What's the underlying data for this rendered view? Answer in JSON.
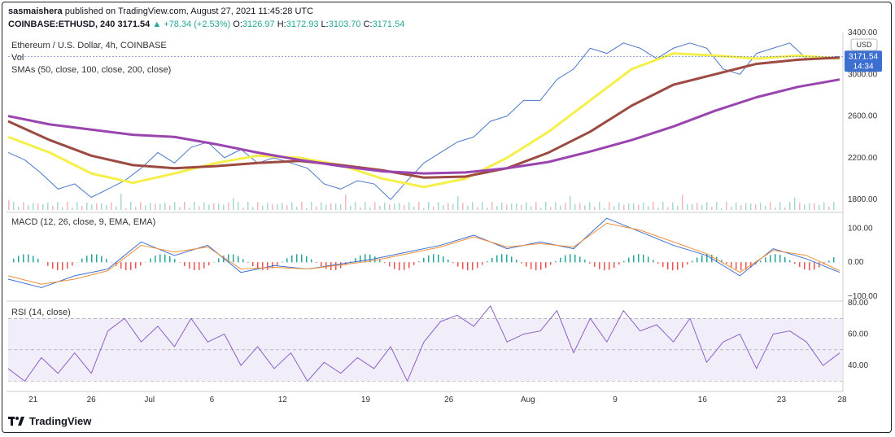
{
  "header": {
    "publisher": "sasmaishera",
    "published_text": "published on TradingView.com, August 27, 2021 11:45:28 UTC",
    "symbol": "COINBASE:ETHUSD, 240",
    "last": "3171.54",
    "change": "▲ +78.34 (+2.53%)",
    "o_label": "O:",
    "o_value": "3126.97",
    "h_label": "H:",
    "h_value": "3172.93",
    "l_label": "L:",
    "l_value": "3103.70",
    "c_label": "C:",
    "c_value": "3171.54"
  },
  "legends": {
    "main": "Ethereum / U.S. Dollar, 4h, COINBASE",
    "vol": "Vol",
    "sma": "SMAs (50, close, 100, close, 200, close)",
    "macd": "MACD (12, 26, close, 9, EMA, EMA)",
    "rsi": "RSI (14, close)"
  },
  "price_tag": {
    "value": "3171.54",
    "countdown": "14:34",
    "currency": "USD"
  },
  "footer": {
    "brand": "TradingView"
  },
  "colors": {
    "price": "#4a78c9",
    "sma50": "#f5ef4a",
    "sma100": "#9c4a42",
    "sma200": "#9a44b0",
    "macd": "#3d6fd1",
    "signal": "#f0913a",
    "rsi": "#8b5fc9"
  },
  "chart_data": [
    {
      "type": "line",
      "title": "Ethereum / U.S. Dollar, 4h, COINBASE",
      "x_ticks": [
        "21",
        "26",
        "Jul",
        "6",
        "12",
        "19",
        "26",
        "Aug",
        "9",
        "16",
        "23",
        "28"
      ],
      "y_ticks": [
        "3400.00",
        "3000.00",
        "2600.00",
        "2200.00",
        "1800.00"
      ],
      "ylim": [
        1700,
        3400
      ],
      "series": [
        {
          "name": "Ethereum / U.S. Dollar",
          "color": "#4a78c9",
          "x": [
            0,
            2,
            4,
            6,
            8,
            10,
            12,
            14,
            16,
            18,
            20,
            22,
            24,
            26,
            28,
            30,
            32,
            34,
            36,
            38,
            40,
            42,
            44,
            46,
            48,
            50,
            52,
            54,
            56,
            58,
            60,
            62,
            64,
            66,
            68,
            70,
            72,
            74,
            76,
            78,
            80,
            82,
            84,
            86,
            88,
            90,
            92,
            94,
            96,
            98,
            100
          ],
          "values": [
            2250,
            2180,
            2050,
            1900,
            1950,
            1820,
            1900,
            1980,
            2100,
            2250,
            2150,
            2300,
            2350,
            2200,
            2280,
            2150,
            2200,
            2150,
            2100,
            1950,
            1900,
            1980,
            1950,
            1800,
            1980,
            2150,
            2250,
            2350,
            2400,
            2550,
            2600,
            2750,
            2750,
            2950,
            3050,
            3250,
            3200,
            3300,
            3250,
            3150,
            3250,
            3300,
            3250,
            3050,
            3000,
            3200,
            3250,
            3300,
            3150,
            3150,
            3171.54
          ]
        },
        {
          "name": "SMA 50",
          "color": "#f5ef4a",
          "x": [
            0,
            5,
            10,
            15,
            20,
            25,
            30,
            35,
            40,
            45,
            50,
            55,
            60,
            65,
            70,
            75,
            80,
            85,
            90,
            95,
            100
          ],
          "values": [
            2400,
            2250,
            2050,
            1960,
            2050,
            2150,
            2220,
            2200,
            2130,
            2000,
            1920,
            2000,
            2200,
            2450,
            2750,
            3050,
            3200,
            3180,
            3150,
            3180,
            3150
          ]
        },
        {
          "name": "SMA 100",
          "color": "#9c4a42",
          "x": [
            0,
            5,
            10,
            15,
            20,
            25,
            30,
            35,
            40,
            45,
            50,
            55,
            60,
            65,
            70,
            75,
            80,
            85,
            90,
            95,
            100
          ],
          "values": [
            2550,
            2370,
            2220,
            2130,
            2100,
            2120,
            2150,
            2170,
            2130,
            2080,
            2010,
            2020,
            2100,
            2250,
            2450,
            2700,
            2900,
            3000,
            3100,
            3140,
            3160
          ]
        },
        {
          "name": "SMA 200",
          "color": "#9a44b0",
          "x": [
            0,
            5,
            10,
            15,
            20,
            25,
            30,
            35,
            40,
            45,
            50,
            55,
            60,
            65,
            70,
            75,
            80,
            85,
            90,
            95,
            100
          ],
          "values": [
            2600,
            2520,
            2470,
            2420,
            2400,
            2330,
            2250,
            2180,
            2120,
            2070,
            2050,
            2060,
            2100,
            2160,
            2260,
            2370,
            2500,
            2650,
            2780,
            2880,
            2950
          ]
        }
      ]
    },
    {
      "type": "line",
      "title": "MACD (12, 26, close, 9, EMA, EMA)",
      "y_ticks": [
        "100.00",
        "0.00",
        "−100.00"
      ],
      "ylim": [
        -110,
        140
      ],
      "series": [
        {
          "name": "MACD",
          "color": "#3d6fd1",
          "x": [
            0,
            4,
            8,
            12,
            16,
            20,
            24,
            28,
            32,
            36,
            40,
            44,
            48,
            52,
            56,
            60,
            64,
            68,
            72,
            76,
            80,
            84,
            88,
            92,
            96,
            100
          ],
          "values": [
            -50,
            -75,
            -40,
            -20,
            60,
            20,
            50,
            -30,
            -10,
            -20,
            -5,
            10,
            30,
            50,
            80,
            40,
            60,
            40,
            130,
            90,
            50,
            20,
            -40,
            40,
            10,
            -30
          ]
        },
        {
          "name": "Signal",
          "color": "#f0913a",
          "x": [
            0,
            4,
            8,
            12,
            16,
            20,
            24,
            28,
            32,
            36,
            40,
            44,
            48,
            52,
            56,
            60,
            64,
            68,
            72,
            76,
            80,
            84,
            88,
            92,
            96,
            100
          ],
          "values": [
            -40,
            -65,
            -50,
            -25,
            50,
            30,
            45,
            -20,
            -15,
            -20,
            -8,
            5,
            25,
            45,
            75,
            45,
            55,
            45,
            115,
            95,
            60,
            25,
            -30,
            35,
            20,
            -25
          ]
        }
      ]
    },
    {
      "type": "line",
      "title": "RSI (14, close)",
      "y_ticks": [
        "80.00",
        "60.00",
        "40.00"
      ],
      "ylim": [
        25,
        80
      ],
      "series": [
        {
          "name": "RSI",
          "color": "#8b5fc9",
          "x": [
            0,
            2,
            4,
            6,
            8,
            10,
            12,
            14,
            16,
            18,
            20,
            22,
            24,
            26,
            28,
            30,
            32,
            34,
            36,
            38,
            40,
            42,
            44,
            46,
            48,
            50,
            52,
            54,
            56,
            58,
            60,
            62,
            64,
            66,
            68,
            70,
            72,
            74,
            76,
            78,
            80,
            82,
            84,
            86,
            88,
            90,
            92,
            94,
            96,
            98,
            100
          ],
          "values": [
            38,
            30,
            45,
            35,
            48,
            35,
            62,
            70,
            55,
            65,
            52,
            70,
            55,
            60,
            40,
            52,
            38,
            48,
            30,
            42,
            35,
            45,
            38,
            52,
            30,
            55,
            68,
            72,
            65,
            78,
            55,
            60,
            62,
            75,
            48,
            70,
            55,
            75,
            62,
            66,
            55,
            70,
            42,
            55,
            60,
            38,
            60,
            62,
            55,
            40,
            48
          ]
        }
      ]
    }
  ]
}
